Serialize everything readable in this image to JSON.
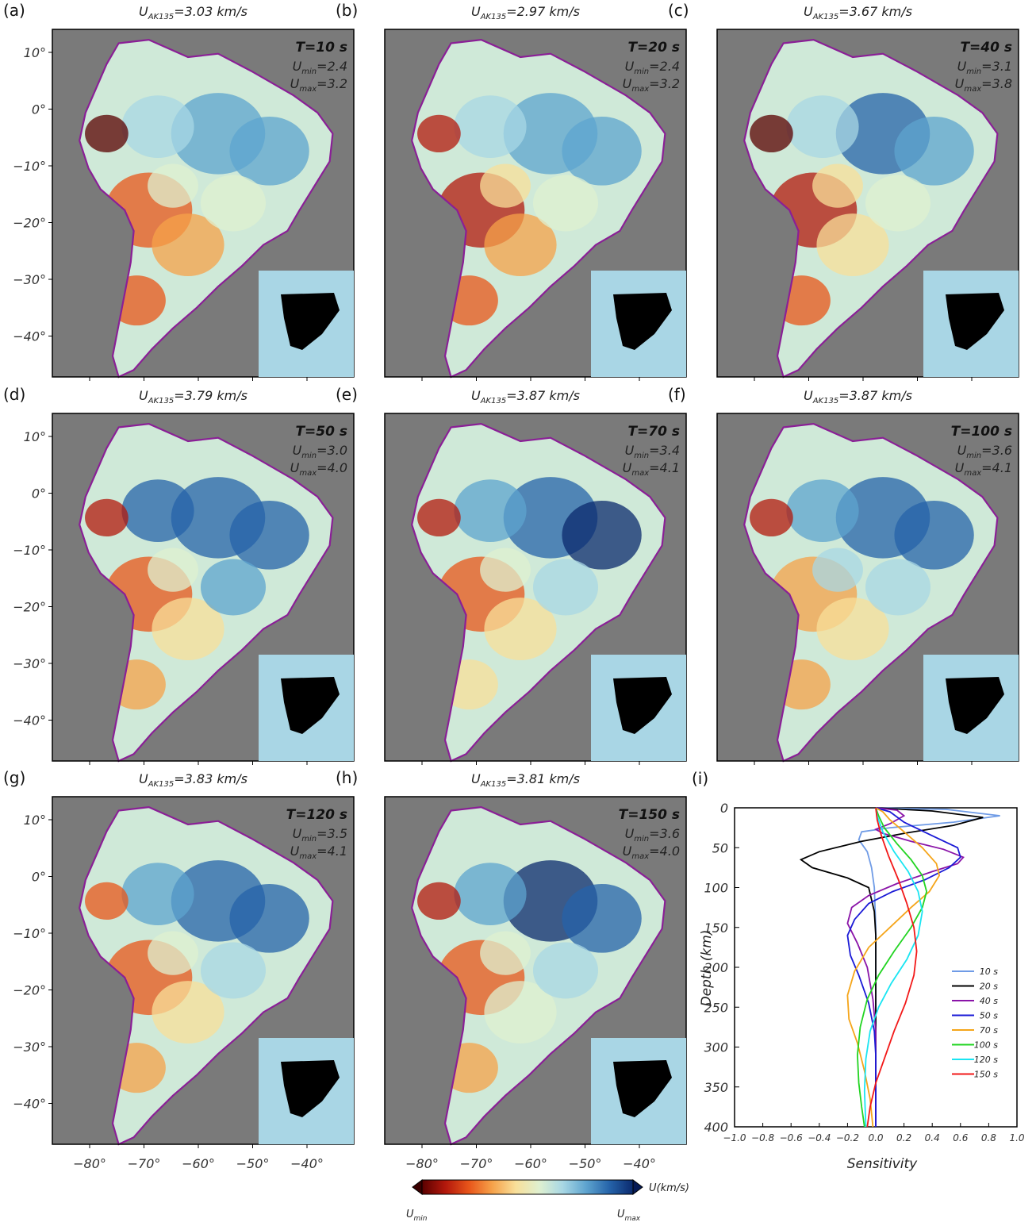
{
  "panels": [
    {
      "label": "(a)",
      "u_ref": "3.03",
      "period": "T=10 s",
      "u_min": "2.4",
      "u_max": "3.2"
    },
    {
      "label": "(b)",
      "u_ref": "2.97",
      "period": "T=20 s",
      "u_min": "2.4",
      "u_max": "3.2"
    },
    {
      "label": "(c)",
      "u_ref": "3.67",
      "period": "T=40 s",
      "u_min": "3.1",
      "u_max": "3.8"
    },
    {
      "label": "(d)",
      "u_ref": "3.79",
      "period": "T=50 s",
      "u_min": "3.0",
      "u_max": "4.0"
    },
    {
      "label": "(e)",
      "u_ref": "3.87",
      "period": "T=70 s",
      "u_min": "3.4",
      "u_max": "4.1"
    },
    {
      "label": "(f)",
      "u_ref": "3.87",
      "period": "T=100 s",
      "u_min": "3.6",
      "u_max": "4.1"
    },
    {
      "label": "(g)",
      "u_ref": "3.83",
      "period": "T=120 s",
      "u_min": "3.5",
      "u_max": "4.1"
    },
    {
      "label": "(h)",
      "u_ref": "3.81",
      "period": "T=150 s",
      "u_min": "3.6",
      "u_max": "4.0"
    }
  ],
  "text": {
    "u_symbol": "U",
    "u_ref_sub": "AK135",
    "u_ref_unit": " km/s",
    "u_min_sub": "min",
    "u_max_sub": "max"
  },
  "map_axes": {
    "lat_ticks": [
      "10°",
      "0°",
      "−10°",
      "−20°",
      "−30°",
      "−40°"
    ],
    "lon_ticks": [
      "−80°",
      "−70°",
      "−60°",
      "−50°",
      "−40°"
    ]
  },
  "colorbar": {
    "label": "U(km/s)",
    "min_label": "U",
    "min_sub": "min",
    "max_label": "U",
    "max_sub": "max",
    "colors": [
      "#5a0000",
      "#b3180c",
      "#e8551a",
      "#f6a24a",
      "#f8df9a",
      "#dff0d0",
      "#a8d7e4",
      "#5ea4cf",
      "#2563a9",
      "#0b2a6e"
    ]
  },
  "chart_data": {
    "type": "line",
    "panel_label": "(i)",
    "xlabel": "Sensitivity",
    "ylabel": "Depth (km)",
    "xlim": [
      -1.0,
      1.0
    ],
    "ylim": [
      400,
      0
    ],
    "x_ticks": [
      "−1.0",
      "−0.8",
      "−0.6",
      "−0.4",
      "−0.2",
      "0.0",
      "0.2",
      "0.4",
      "0.6",
      "0.8",
      "1.0"
    ],
    "y_ticks": [
      "0",
      "50",
      "100",
      "150",
      "200",
      "250",
      "300",
      "350",
      "400"
    ],
    "legend_position": "bottom-right",
    "series": [
      {
        "name": "10 s",
        "color": "#6f9be6",
        "points": [
          [
            0.0,
            0
          ],
          [
            0.5,
            2
          ],
          [
            0.88,
            10
          ],
          [
            0.55,
            18
          ],
          [
            0.1,
            25
          ],
          [
            -0.1,
            30
          ],
          [
            -0.12,
            40
          ],
          [
            -0.06,
            55
          ],
          [
            -0.03,
            75
          ],
          [
            -0.01,
            100
          ],
          [
            0.0,
            150
          ],
          [
            0.0,
            200
          ],
          [
            0.0,
            400
          ]
        ]
      },
      {
        "name": "20 s",
        "color": "#000000",
        "points": [
          [
            0.0,
            0
          ],
          [
            0.4,
            4
          ],
          [
            0.76,
            12
          ],
          [
            0.55,
            22
          ],
          [
            0.2,
            32
          ],
          [
            -0.1,
            42
          ],
          [
            -0.4,
            55
          ],
          [
            -0.53,
            65
          ],
          [
            -0.45,
            75
          ],
          [
            -0.2,
            88
          ],
          [
            -0.05,
            100
          ],
          [
            -0.01,
            130
          ],
          [
            0.0,
            160
          ],
          [
            0.0,
            400
          ]
        ]
      },
      {
        "name": "40 s",
        "color": "#8a14a8",
        "points": [
          [
            0.0,
            0
          ],
          [
            0.15,
            3
          ],
          [
            0.2,
            10
          ],
          [
            0.1,
            20
          ],
          [
            0.0,
            27
          ],
          [
            0.05,
            32
          ],
          [
            0.25,
            42
          ],
          [
            0.48,
            52
          ],
          [
            0.62,
            62
          ],
          [
            0.58,
            70
          ],
          [
            0.4,
            80
          ],
          [
            0.15,
            95
          ],
          [
            -0.05,
            110
          ],
          [
            -0.17,
            125
          ],
          [
            -0.2,
            145
          ],
          [
            -0.13,
            170
          ],
          [
            -0.06,
            200
          ],
          [
            -0.02,
            240
          ],
          [
            0.0,
            280
          ],
          [
            0.0,
            400
          ]
        ]
      },
      {
        "name": "50 s",
        "color": "#1a1ad6",
        "points": [
          [
            0.0,
            0
          ],
          [
            0.1,
            5
          ],
          [
            0.2,
            18
          ],
          [
            0.4,
            35
          ],
          [
            0.58,
            50
          ],
          [
            0.6,
            62
          ],
          [
            0.52,
            75
          ],
          [
            0.35,
            90
          ],
          [
            0.12,
            105
          ],
          [
            -0.05,
            120
          ],
          [
            -0.15,
            140
          ],
          [
            -0.2,
            160
          ],
          [
            -0.18,
            185
          ],
          [
            -0.12,
            210
          ],
          [
            -0.05,
            245
          ],
          [
            -0.01,
            280
          ],
          [
            0.0,
            310
          ],
          [
            0.0,
            400
          ]
        ]
      },
      {
        "name": "70 s",
        "color": "#f5a51a",
        "points": [
          [
            0.0,
            0
          ],
          [
            0.05,
            5
          ],
          [
            0.1,
            15
          ],
          [
            0.2,
            30
          ],
          [
            0.33,
            50
          ],
          [
            0.43,
            70
          ],
          [
            0.45,
            85
          ],
          [
            0.38,
            105
          ],
          [
            0.25,
            125
          ],
          [
            0.1,
            150
          ],
          [
            -0.05,
            175
          ],
          [
            -0.15,
            205
          ],
          [
            -0.2,
            235
          ],
          [
            -0.19,
            265
          ],
          [
            -0.13,
            295
          ],
          [
            -0.08,
            330
          ],
          [
            -0.04,
            365
          ],
          [
            -0.02,
            400
          ]
        ]
      },
      {
        "name": "100 s",
        "color": "#22d422",
        "points": [
          [
            0.0,
            0
          ],
          [
            0.02,
            10
          ],
          [
            0.06,
            25
          ],
          [
            0.15,
            45
          ],
          [
            0.25,
            65
          ],
          [
            0.33,
            85
          ],
          [
            0.36,
            105
          ],
          [
            0.33,
            125
          ],
          [
            0.25,
            150
          ],
          [
            0.13,
            180
          ],
          [
            0.02,
            210
          ],
          [
            -0.06,
            240
          ],
          [
            -0.11,
            275
          ],
          [
            -0.13,
            310
          ],
          [
            -0.12,
            345
          ],
          [
            -0.1,
            375
          ],
          [
            -0.08,
            400
          ]
        ]
      },
      {
        "name": "120 s",
        "color": "#1ae5f2",
        "points": [
          [
            0.0,
            0
          ],
          [
            0.01,
            10
          ],
          [
            0.05,
            30
          ],
          [
            0.13,
            55
          ],
          [
            0.23,
            80
          ],
          [
            0.3,
            105
          ],
          [
            0.33,
            130
          ],
          [
            0.3,
            160
          ],
          [
            0.22,
            190
          ],
          [
            0.11,
            220
          ],
          [
            0.02,
            250
          ],
          [
            -0.04,
            280
          ],
          [
            -0.07,
            315
          ],
          [
            -0.08,
            355
          ],
          [
            -0.07,
            400
          ]
        ]
      },
      {
        "name": "150 s",
        "color": "#f21818",
        "points": [
          [
            0.0,
            0
          ],
          [
            0.01,
            15
          ],
          [
            0.04,
            35
          ],
          [
            0.09,
            60
          ],
          [
            0.16,
            90
          ],
          [
            0.22,
            120
          ],
          [
            0.27,
            150
          ],
          [
            0.29,
            180
          ],
          [
            0.27,
            210
          ],
          [
            0.21,
            245
          ],
          [
            0.13,
            280
          ],
          [
            0.06,
            315
          ],
          [
            0.0,
            345
          ],
          [
            -0.04,
            375
          ],
          [
            -0.06,
            400
          ]
        ]
      }
    ]
  }
}
